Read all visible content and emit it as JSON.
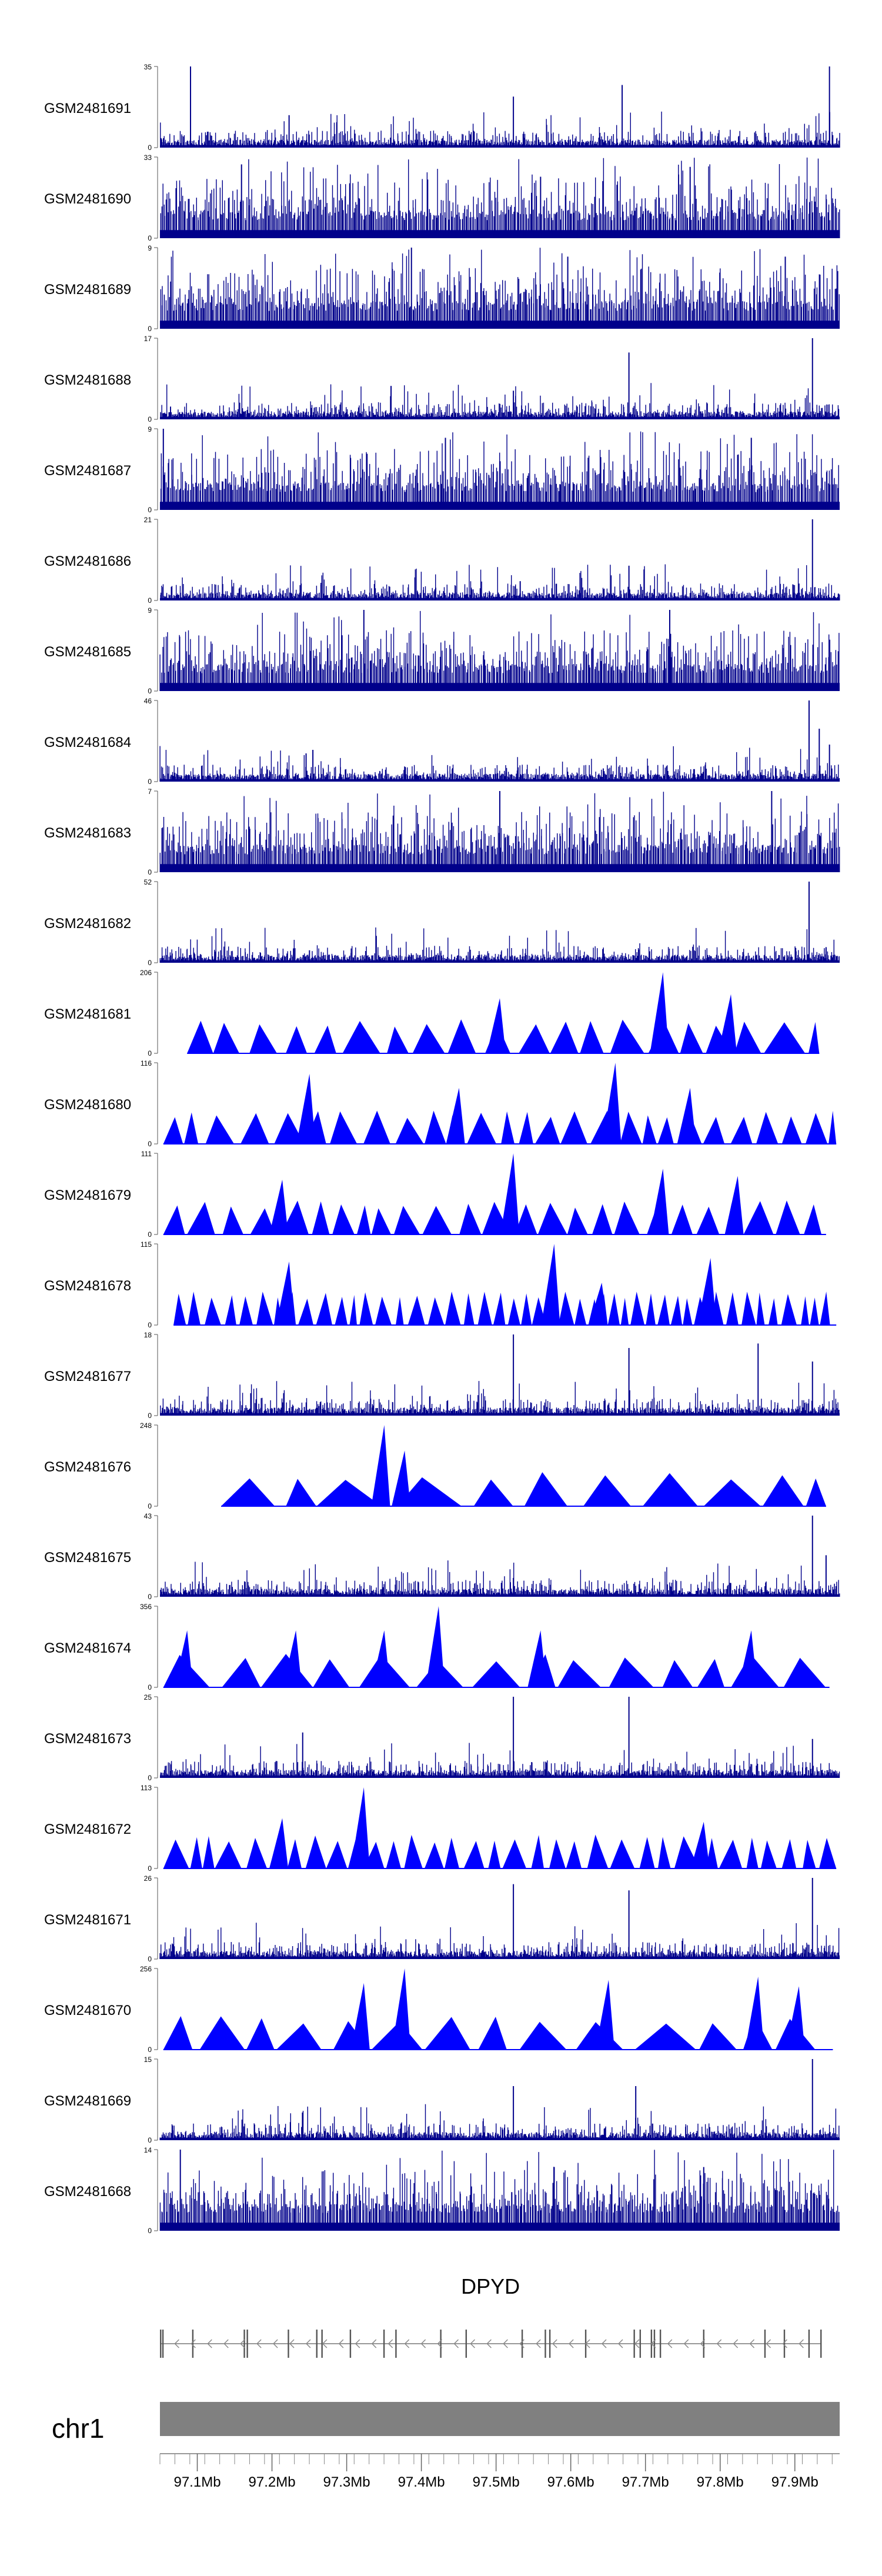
{
  "chart_data": {
    "type": "genome-tracks",
    "region": {
      "chrom": "chr1",
      "start_mb": 97.05,
      "end_mb": 97.96
    },
    "tracks": [
      {
        "id": "GSM2481691",
        "ymax": 35,
        "style": "spiky",
        "mode": "sparse",
        "color": "#00008b",
        "peaks": [
          [
            0.045,
            35
          ],
          [
            0.19,
            14
          ],
          [
            0.52,
            22
          ],
          [
            0.68,
            27
          ],
          [
            0.985,
            35
          ]
        ]
      },
      {
        "id": "GSM2481690",
        "ymax": 33,
        "style": "spiky",
        "mode": "dense",
        "color": "#00008b",
        "peaks": [
          [
            0.12,
            30
          ],
          [
            0.56,
            25
          ],
          [
            0.78,
            29
          ]
        ]
      },
      {
        "id": "GSM2481689",
        "ymax": 9,
        "style": "spiky",
        "mode": "dense",
        "color": "#00008b",
        "peaks": [
          [
            0.37,
            9
          ],
          [
            0.6,
            8
          ],
          [
            0.92,
            8
          ]
        ]
      },
      {
        "id": "GSM2481688",
        "ymax": 17,
        "style": "spiky",
        "mode": "sparse",
        "color": "#00008b",
        "peaks": [
          [
            0.34,
            7
          ],
          [
            0.52,
            6
          ],
          [
            0.69,
            14
          ],
          [
            0.96,
            17
          ]
        ]
      },
      {
        "id": "GSM2481687",
        "ymax": 9,
        "style": "spiky",
        "mode": "dense",
        "color": "#00008b",
        "peaks": [
          [
            0.005,
            9
          ],
          [
            0.42,
            8
          ],
          [
            0.87,
            8
          ]
        ]
      },
      {
        "id": "GSM2481686",
        "ymax": 21,
        "style": "spiky",
        "mode": "sparse",
        "color": "#00008b",
        "peaks": [
          [
            0.53,
            5
          ],
          [
            0.69,
            9
          ],
          [
            0.96,
            21
          ]
        ]
      },
      {
        "id": "GSM2481685",
        "ymax": 9,
        "style": "spiky",
        "mode": "dense",
        "color": "#00008b",
        "peaks": [
          [
            0.3,
            9
          ],
          [
            0.75,
            9
          ]
        ]
      },
      {
        "id": "GSM2481684",
        "ymax": 46,
        "style": "spiky",
        "mode": "sparse",
        "color": "#00008b",
        "peaks": [
          [
            0.215,
            16
          ],
          [
            0.225,
            18
          ],
          [
            0.43,
            7
          ],
          [
            0.54,
            7
          ],
          [
            0.955,
            46
          ],
          [
            0.97,
            30
          ],
          [
            0.985,
            21
          ]
        ]
      },
      {
        "id": "GSM2481683",
        "ymax": 7,
        "style": "spiky",
        "mode": "dense",
        "color": "#00008b",
        "peaks": [
          [
            0.5,
            7
          ],
          [
            0.9,
            7
          ]
        ]
      },
      {
        "id": "GSM2481682",
        "ymax": 52,
        "style": "spiky",
        "mode": "sparse",
        "color": "#00008b",
        "peaks": [
          [
            0.22,
            8
          ],
          [
            0.53,
            5
          ],
          [
            0.955,
            52
          ],
          [
            0.98,
            10
          ]
        ]
      },
      {
        "id": "GSM2481681",
        "ymax": 206,
        "style": "triangles",
        "spacing": 0.045,
        "start": 0.04,
        "end": 0.97,
        "color": "#0000ff",
        "peaks": [
          [
            0.5,
            140
          ],
          [
            0.74,
            206
          ],
          [
            0.84,
            150
          ]
        ]
      },
      {
        "id": "GSM2481680",
        "ymax": 116,
        "style": "triangles",
        "spacing": 0.032,
        "start": 0.005,
        "end": 0.995,
        "color": "#0000ff",
        "peaks": [
          [
            0.22,
            100
          ],
          [
            0.44,
            80
          ],
          [
            0.67,
            116
          ],
          [
            0.78,
            80
          ]
        ]
      },
      {
        "id": "GSM2481679",
        "ymax": 111,
        "style": "triangles",
        "spacing": 0.033,
        "start": 0.005,
        "end": 0.98,
        "color": "#0000ff",
        "peaks": [
          [
            0.18,
            75
          ],
          [
            0.52,
            111
          ],
          [
            0.74,
            90
          ],
          [
            0.85,
            80
          ]
        ]
      },
      {
        "id": "GSM2481678",
        "ymax": 115,
        "style": "triangles",
        "spacing": 0.018,
        "start": 0.02,
        "end": 0.995,
        "color": "#0000ff",
        "peaks": [
          [
            0.19,
            90
          ],
          [
            0.58,
            115
          ],
          [
            0.65,
            60
          ],
          [
            0.81,
            95
          ]
        ]
      },
      {
        "id": "GSM2481677",
        "ymax": 18,
        "style": "spiky",
        "mode": "sparse",
        "color": "#00008b",
        "peaks": [
          [
            0.52,
            18
          ],
          [
            0.69,
            15
          ],
          [
            0.88,
            16
          ],
          [
            0.96,
            12
          ]
        ]
      },
      {
        "id": "GSM2481676",
        "ymax": 248,
        "style": "triangles",
        "spacing": 0.07,
        "start": 0.09,
        "end": 0.98,
        "color": "#0000ff",
        "peaks": [
          [
            0.33,
            248
          ],
          [
            0.36,
            170
          ]
        ]
      },
      {
        "id": "GSM2481675",
        "ymax": 43,
        "style": "spiky",
        "mode": "sparse",
        "color": "#00008b",
        "peaks": [
          [
            0.52,
            10
          ],
          [
            0.96,
            43
          ],
          [
            0.98,
            22
          ]
        ]
      },
      {
        "id": "GSM2481674",
        "ymax": 356,
        "style": "triangles",
        "spacing": 0.055,
        "start": 0.005,
        "end": 0.985,
        "color": "#0000ff",
        "peaks": [
          [
            0.04,
            250
          ],
          [
            0.2,
            250
          ],
          [
            0.33,
            250
          ],
          [
            0.41,
            356
          ],
          [
            0.56,
            250
          ],
          [
            0.87,
            250
          ]
        ]
      },
      {
        "id": "GSM2481673",
        "ymax": 25,
        "style": "spiky",
        "mode": "sparse",
        "color": "#00008b",
        "peaks": [
          [
            0.21,
            14
          ],
          [
            0.52,
            25
          ],
          [
            0.69,
            25
          ],
          [
            0.96,
            12
          ]
        ]
      },
      {
        "id": "GSM2481672",
        "ymax": 113,
        "style": "triangles",
        "spacing": 0.028,
        "start": 0.005,
        "end": 0.995,
        "color": "#0000ff",
        "peaks": [
          [
            0.3,
            113
          ],
          [
            0.18,
            70
          ],
          [
            0.8,
            65
          ]
        ]
      },
      {
        "id": "GSM2481671",
        "ymax": 26,
        "style": "spiky",
        "mode": "sparse",
        "color": "#00008b",
        "peaks": [
          [
            0.52,
            24
          ],
          [
            0.69,
            22
          ],
          [
            0.96,
            26
          ]
        ]
      },
      {
        "id": "GSM2481670",
        "ymax": 256,
        "style": "triangles",
        "spacing": 0.065,
        "start": 0.005,
        "end": 0.99,
        "color": "#0000ff",
        "peaks": [
          [
            0.3,
            210
          ],
          [
            0.36,
            256
          ],
          [
            0.66,
            220
          ],
          [
            0.88,
            230
          ],
          [
            0.94,
            200
          ]
        ]
      },
      {
        "id": "GSM2481669",
        "ymax": 15,
        "style": "spiky",
        "mode": "sparse",
        "color": "#00008b",
        "peaks": [
          [
            0.52,
            10
          ],
          [
            0.7,
            10
          ],
          [
            0.96,
            15
          ]
        ]
      },
      {
        "id": "GSM2481668",
        "ymax": 14,
        "style": "spiky",
        "mode": "dense",
        "color": "#00008b",
        "peaks": [
          [
            0.03,
            14
          ],
          [
            0.58,
            11
          ],
          [
            0.8,
            11
          ]
        ]
      }
    ],
    "gene": {
      "name": "DPYD",
      "strand": "-",
      "start_mb": 97.05,
      "end_mb": 97.935,
      "exons_mb": [
        97.051,
        97.054,
        97.094,
        97.163,
        97.167,
        97.222,
        97.26,
        97.267,
        97.305,
        97.35,
        97.366,
        97.426,
        97.46,
        97.535,
        97.566,
        97.572,
        97.62,
        97.685,
        97.693,
        97.708,
        97.712,
        97.72,
        97.778,
        97.86,
        97.886,
        97.919,
        97.935
      ]
    },
    "chromosome": {
      "label": "chr1",
      "color": "#808080"
    },
    "axis": {
      "ticks_mb": [
        97.1,
        97.2,
        97.3,
        97.4,
        97.5,
        97.6,
        97.7,
        97.8,
        97.9
      ],
      "tick_labels": [
        "97.1Mb",
        "97.2Mb",
        "97.3Mb",
        "97.4Mb",
        "97.5Mb",
        "97.6Mb",
        "97.7Mb",
        "97.8Mb",
        "97.9Mb"
      ],
      "minor_step_mb": 0.02
    }
  }
}
